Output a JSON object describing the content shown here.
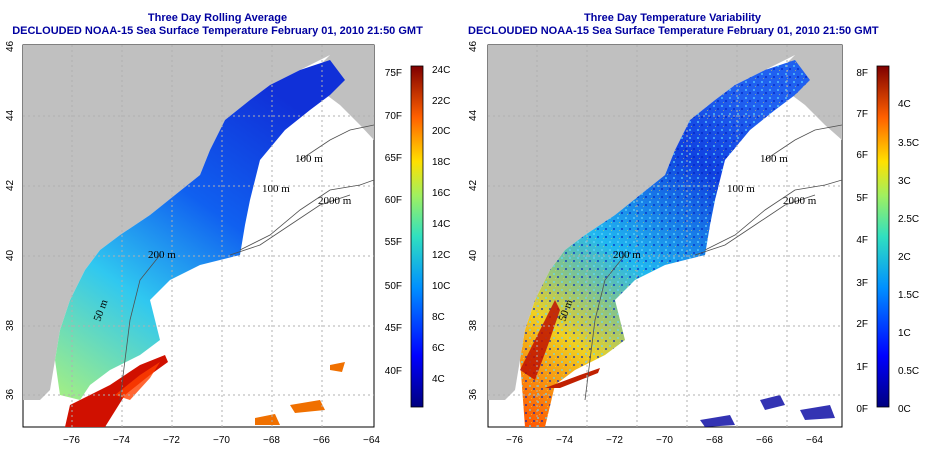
{
  "panels": [
    {
      "title_line1": "Three Day Rolling Average",
      "title_line2": "DECLOUDED NOAA-15 Sea Surface Temperature February 01, 2010 21:50 GMT",
      "colorbar": {
        "f_labels": [
          "75F",
          "70F",
          "65F",
          "60F",
          "55F",
          "50F",
          "45F",
          "40F"
        ],
        "c_labels": [
          "24C",
          "22C",
          "20C",
          "18C",
          "16C",
          "14C",
          "12C",
          "10C",
          "8C",
          "6C",
          "4C"
        ]
      }
    },
    {
      "title_line1": "Three Day Temperature Variability",
      "title_line2": "DECLOUDED NOAA-15 Sea Surface Temperature February 01, 2010 21:50 GMT",
      "colorbar": {
        "f_labels": [
          "8F",
          "7F",
          "6F",
          "5F",
          "4F",
          "3F",
          "2F",
          "1F",
          "0F"
        ],
        "c_labels": [
          "4C",
          "3.5C",
          "3C",
          "2.5C",
          "2C",
          "1.5C",
          "1C",
          "0.5C",
          "0C"
        ]
      }
    }
  ],
  "axes": {
    "lon_labels": [
      "−76",
      "−74",
      "−72",
      "−70",
      "−68",
      "−66",
      "−64"
    ],
    "lat_labels": [
      "36",
      "38",
      "40",
      "42",
      "44",
      "46"
    ]
  },
  "contours": {
    "label_100m": "100 m",
    "label_2000m": "2000 m",
    "label_200m": "200 m",
    "label_50m": "50 m"
  },
  "colors": {
    "land": "#c0c0c0",
    "title": "#0000a0",
    "grid": "#b0b0b0"
  }
}
